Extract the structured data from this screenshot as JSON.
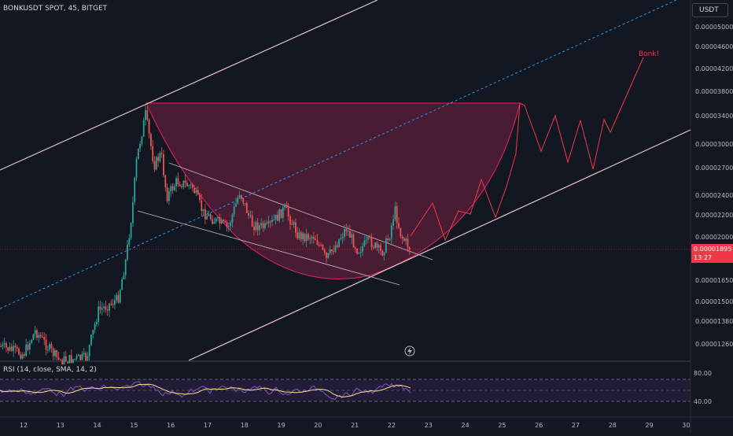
{
  "header": {
    "symbol_line": "BONKUSDT SPOT, 45, BITGET"
  },
  "currency_button": "USDT",
  "current_price": {
    "value": "0.00001895",
    "countdown": "13:27"
  },
  "annotation": "Bonk!",
  "rsi_header": "RSI (14, close, SMA, 14, 2)",
  "colors": {
    "background": "#131722",
    "up": "#26a69a",
    "down": "#ef5350",
    "cup_fill": "#6d1f3e",
    "cup_stroke": "#e91e63",
    "channel": "#e8c3c3",
    "midline": "#2196f3",
    "rsi_line": "#7e57c2",
    "rsi_ma": "#f5e38c",
    "projection": "#f23645"
  },
  "chart_data": {
    "type": "candlestick",
    "price_axis_labels": [
      "0.00005000000",
      "0.00004600000",
      "0.00004200000",
      "0.00003800000",
      "0.00003400000",
      "0.00003000000",
      "0.00002700000",
      "0.00002400000",
      "0.00002200000",
      "0.00002000000",
      "0.00001650000",
      "0.00001500000",
      "0.00001380000",
      "0.00001260000"
    ],
    "date_labels": [
      "12",
      "13",
      "14",
      "15",
      "16",
      "17",
      "18",
      "19",
      "20",
      "21",
      "22",
      "23",
      "24",
      "25",
      "26",
      "27",
      "28",
      "29",
      "30"
    ],
    "rsi_levels": [
      "80.00",
      "40.00"
    ],
    "y_scale": "log",
    "grid": false
  }
}
